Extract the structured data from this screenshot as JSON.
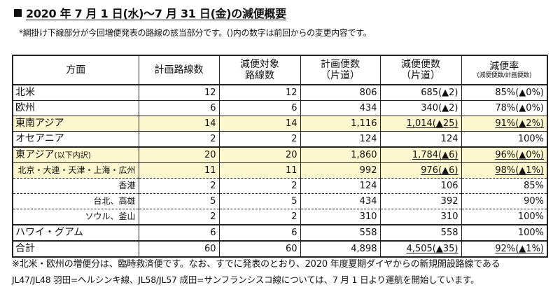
{
  "title": "2020 年 7 月 1 日(水)～7 月 31 日(金)の減便概要",
  "subnote": "*網掛け下線部分が今回増便発表の路線の該当部分です。()内の数字は前回からの変更内容です。",
  "table": {
    "headers": [
      {
        "line1": "方面",
        "line2": "",
        "small": ""
      },
      {
        "line1": "計画路線数",
        "line2": "",
        "small": ""
      },
      {
        "line1": "減便対象",
        "line2": "路線数",
        "small": ""
      },
      {
        "line1": "計画便数",
        "line2": "（片道）",
        "small": ""
      },
      {
        "line1": "減便便数",
        "line2": "（片道）",
        "small": ""
      },
      {
        "line1": "減便率",
        "line2": "",
        "small": "(減便便数/計画便数)"
      }
    ],
    "rows": [
      {
        "name": "北米",
        "note": "",
        "planned_routes": "12",
        "reduced_routes": "12",
        "planned_flights": "806",
        "reduced_flights": "685(▲2)",
        "rate": "85%(▲0%)",
        "highlight": false
      },
      {
        "name": "欧州",
        "note": "",
        "planned_routes": "6",
        "reduced_routes": "6",
        "planned_flights": "434",
        "reduced_flights": "340(▲2)",
        "rate": "78%(▲0%)",
        "highlight": false
      },
      {
        "name": "東南アジア",
        "note": "",
        "planned_routes": "14",
        "reduced_routes": "14",
        "planned_flights": "1,116",
        "reduced_flights": "1,014(▲25)",
        "rate": "91%(▲2%)",
        "highlight": true
      },
      {
        "name": "オセアニア",
        "note": "",
        "planned_routes": "2",
        "reduced_routes": "2",
        "planned_flights": "124",
        "reduced_flights": "124",
        "rate": "100%",
        "highlight": false
      },
      {
        "name": "東アジア",
        "note": "(以下内訳)",
        "planned_routes": "20",
        "reduced_routes": "20",
        "planned_flights": "1,860",
        "reduced_flights": "1,784(▲6)",
        "rate": "96%(▲0%)",
        "highlight": true
      },
      {
        "name": "北京・大連・天津・上海・広州",
        "note": "",
        "planned_routes": "11",
        "reduced_routes": "11",
        "planned_flights": "992",
        "reduced_flights": "976(▲6)",
        "rate": "98%(▲1%)",
        "highlight": true
      },
      {
        "name": "香港",
        "note": "",
        "planned_routes": "2",
        "reduced_routes": "2",
        "planned_flights": "124",
        "reduced_flights": "106",
        "rate": "85%",
        "highlight": false
      },
      {
        "name": "台北、高雄",
        "note": "",
        "planned_routes": "5",
        "reduced_routes": "5",
        "planned_flights": "434",
        "reduced_flights": "392",
        "rate": "90%",
        "highlight": false
      },
      {
        "name": "ソウル、釜山",
        "note": "",
        "planned_routes": "2",
        "reduced_routes": "2",
        "planned_flights": "310",
        "reduced_flights": "310",
        "rate": "100%",
        "highlight": false
      },
      {
        "name": "ハワイ・グアム",
        "note": "",
        "planned_routes": "6",
        "reduced_routes": "6",
        "planned_flights": "558",
        "reduced_flights": "558",
        "rate": "100%",
        "highlight": false
      },
      {
        "name": "合計",
        "note": "",
        "planned_routes": "60",
        "reduced_routes": "60",
        "planned_flights": "4,898",
        "reduced_flights": "4,505(▲35)",
        "rate": "92%(▲1%)",
        "highlight": false
      }
    ]
  },
  "footnotes": [
    "※北米・欧州の増便分は、臨時救済便です。なお、すでに発表のとおり、2020 年度夏期ダイヤからの新規開設路線である",
    "JL47/JL48 羽田=ヘルシンキ線、JL58/JL57  成田=サンフランシスコ線については、7 月 1 日より運航を開始しています。"
  ],
  "colors": {
    "highlight_bg": "#fcf7cc",
    "border": "#222222"
  }
}
